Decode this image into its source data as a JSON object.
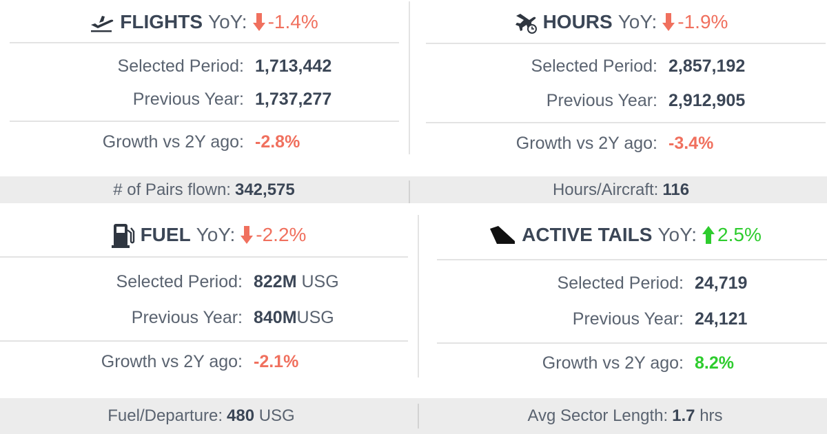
{
  "flights": {
    "title": "FLIGHTS",
    "yoy_label": "YoY:",
    "yoy_value": "-1.4%",
    "selected_label": "Selected Period:",
    "selected_value": "1,713,442",
    "previous_label": "Previous Year:",
    "previous_value": "1,737,277",
    "growth_label": "Growth vs 2Y ago:",
    "growth_value": "-2.8%",
    "icon": "plane-takeoff-icon"
  },
  "hours": {
    "title": "HOURS",
    "yoy_label": "YoY:",
    "yoy_value": "-1.9%",
    "selected_label": "Selected Period:",
    "selected_value": "2,857,192",
    "previous_label": "Previous Year:",
    "previous_value": "2,912,905",
    "growth_label": "Growth vs 2Y ago:",
    "growth_value": "-3.4%",
    "icon": "plane-clock-icon"
  },
  "band1": {
    "pairs_label": "# of Pairs flown:",
    "pairs_value": "342,575",
    "hpa_label": "Hours/Aircraft:",
    "hpa_value": "116"
  },
  "fuel": {
    "title": "FUEL",
    "yoy_label": "YoY:",
    "yoy_value": "-2.2%",
    "selected_label": "Selected Period:",
    "selected_value": "822M",
    "selected_unit": " USG",
    "previous_label": "Previous Year:",
    "previous_value": "840M",
    "previous_unit": "USG",
    "growth_label": "Growth vs 2Y ago:",
    "growth_value": "-2.1%",
    "icon": "fuel-pump-icon"
  },
  "tails": {
    "title": "ACTIVE TAILS",
    "yoy_label": "YoY:",
    "yoy_value": "2.5%",
    "selected_label": "Selected Period:",
    "selected_value": "24,719",
    "previous_label": "Previous Year:",
    "previous_value": "24,121",
    "growth_label": "Growth vs 2Y ago:",
    "growth_value": "8.2%",
    "icon": "tail-fin-icon"
  },
  "band2": {
    "fpd_label": "Fuel/Departure:",
    "fpd_value": "480",
    "fpd_unit": " USG",
    "sector_label": "Avg Sector Length:",
    "sector_value": "1.7",
    "sector_unit": " hrs"
  },
  "colors": {
    "negative": "#f0705e",
    "positive": "#2ecc2e",
    "title": "#3b4656",
    "label": "#5a6370",
    "band": "#ececec"
  }
}
